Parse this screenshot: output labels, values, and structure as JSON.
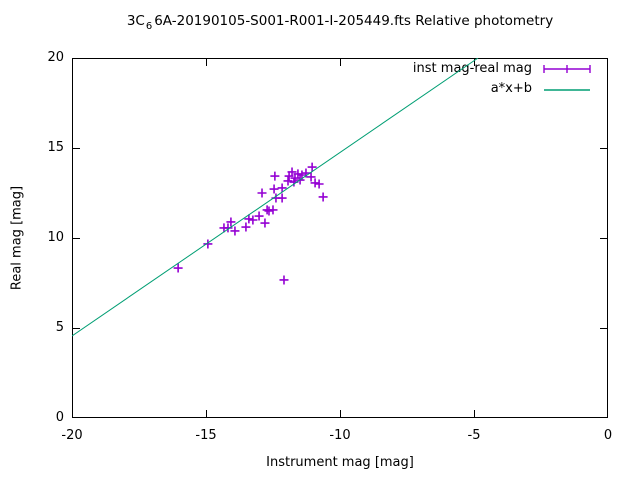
{
  "title": {
    "prefix": "3C",
    "subscript": "6",
    "rest": "6A-20190105-S001-R001-I-205449.fts Relative photometry"
  },
  "colors": {
    "points": "#9400D3",
    "fit_line": "#009E73",
    "axis": "#000000",
    "background": "#FFFFFF"
  },
  "chart_data": {
    "type": "scatter",
    "title": "3C_66A-20190105-S001-R001-I-205449.fts Relative photometry",
    "xlabel": "Instrument mag [mag]",
    "ylabel": "Real mag [mag]",
    "xlim": [
      -20,
      0
    ],
    "ylim": [
      0,
      20
    ],
    "xticks": [
      -20,
      -15,
      -10,
      -5,
      0
    ],
    "yticks": [
      0,
      5,
      10,
      15,
      20
    ],
    "xtick_labels": [
      "-20",
      "-15",
      "-10",
      "-5",
      "0"
    ],
    "ytick_labels": [
      "0",
      "5",
      "10",
      "15",
      "20"
    ],
    "grid": false,
    "legend_position": "top-right-inside",
    "series": [
      {
        "name": "inst mag-real mag",
        "type": "points",
        "marker": "plus-errorbar",
        "color": "#9400D3",
        "points": [
          [
            -16.04,
            8.33
          ],
          [
            -14.93,
            9.67
          ],
          [
            -14.33,
            10.56
          ],
          [
            -14.18,
            10.56
          ],
          [
            -14.07,
            10.89
          ],
          [
            -13.92,
            10.39
          ],
          [
            -13.51,
            10.61
          ],
          [
            -13.4,
            11.06
          ],
          [
            -13.25,
            11.0
          ],
          [
            -13.02,
            11.22
          ],
          [
            -12.91,
            12.5
          ],
          [
            -12.8,
            10.83
          ],
          [
            -12.72,
            11.56
          ],
          [
            -12.65,
            11.5
          ],
          [
            -12.5,
            11.56
          ],
          [
            -12.46,
            12.72
          ],
          [
            -12.43,
            13.44
          ],
          [
            -12.39,
            12.22
          ],
          [
            -12.16,
            12.22
          ],
          [
            -12.16,
            12.78
          ],
          [
            -11.94,
            13.17
          ],
          [
            -11.9,
            13.44
          ],
          [
            -11.79,
            13.67
          ],
          [
            -11.72,
            13.11
          ],
          [
            -11.68,
            13.33
          ],
          [
            -11.57,
            13.56
          ],
          [
            -11.49,
            13.22
          ],
          [
            -11.42,
            13.5
          ],
          [
            -11.27,
            13.61
          ],
          [
            -11.08,
            13.39
          ],
          [
            -11.04,
            13.94
          ],
          [
            -10.93,
            13.06
          ],
          [
            -10.78,
            13.0
          ],
          [
            -10.63,
            12.28
          ],
          [
            -12.09,
            7.67
          ]
        ]
      },
      {
        "name": "a*x+b",
        "type": "line",
        "color": "#009E73",
        "x": [
          -20,
          -4.85
        ],
        "y": [
          4.56,
          20
        ]
      }
    ]
  }
}
